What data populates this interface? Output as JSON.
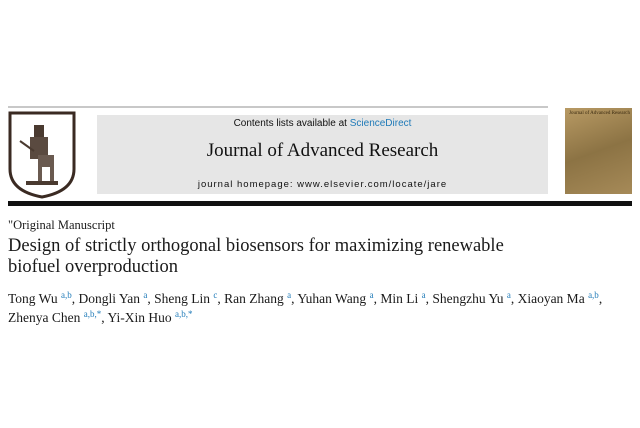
{
  "header": {
    "contents_prefix": "Contents lists available at ",
    "sciencedirect_link": "ScienceDirect",
    "journal_title": "Journal of Advanced Research",
    "homepage": "journal homepage: www.elsevier.com/locate/jare",
    "cover_title": "Journal of Advanced Research",
    "link_color": "#1f7ab8"
  },
  "article": {
    "type": "\"Original Manuscript",
    "title_line1": "Design of strictly orthogonal biosensors for maximizing renewable",
    "title_line2": "biofuel overproduction",
    "authors": [
      {
        "name": "Tong Wu",
        "aff": "a,b",
        "sep": ", "
      },
      {
        "name": "Dongli Yan",
        "aff": "a",
        "sep": ", "
      },
      {
        "name": "Sheng Lin",
        "aff": "c",
        "sep": ", "
      },
      {
        "name": "Ran Zhang",
        "aff": "a",
        "sep": ", "
      },
      {
        "name": "Yuhan Wang",
        "aff": "a",
        "sep": ", "
      },
      {
        "name": "Min Li",
        "aff": "a",
        "sep": ", "
      },
      {
        "name": "Shengzhu Yu",
        "aff": "a",
        "sep": ", "
      },
      {
        "name": "Xiaoyan Ma",
        "aff": "a,b",
        "sep": ","
      },
      {
        "name": "Zhenya Chen",
        "aff": "a,b,*",
        "sep": ", "
      },
      {
        "name": "Yi-Xin Huo",
        "aff": "a,b,*",
        "sep": ""
      }
    ]
  }
}
